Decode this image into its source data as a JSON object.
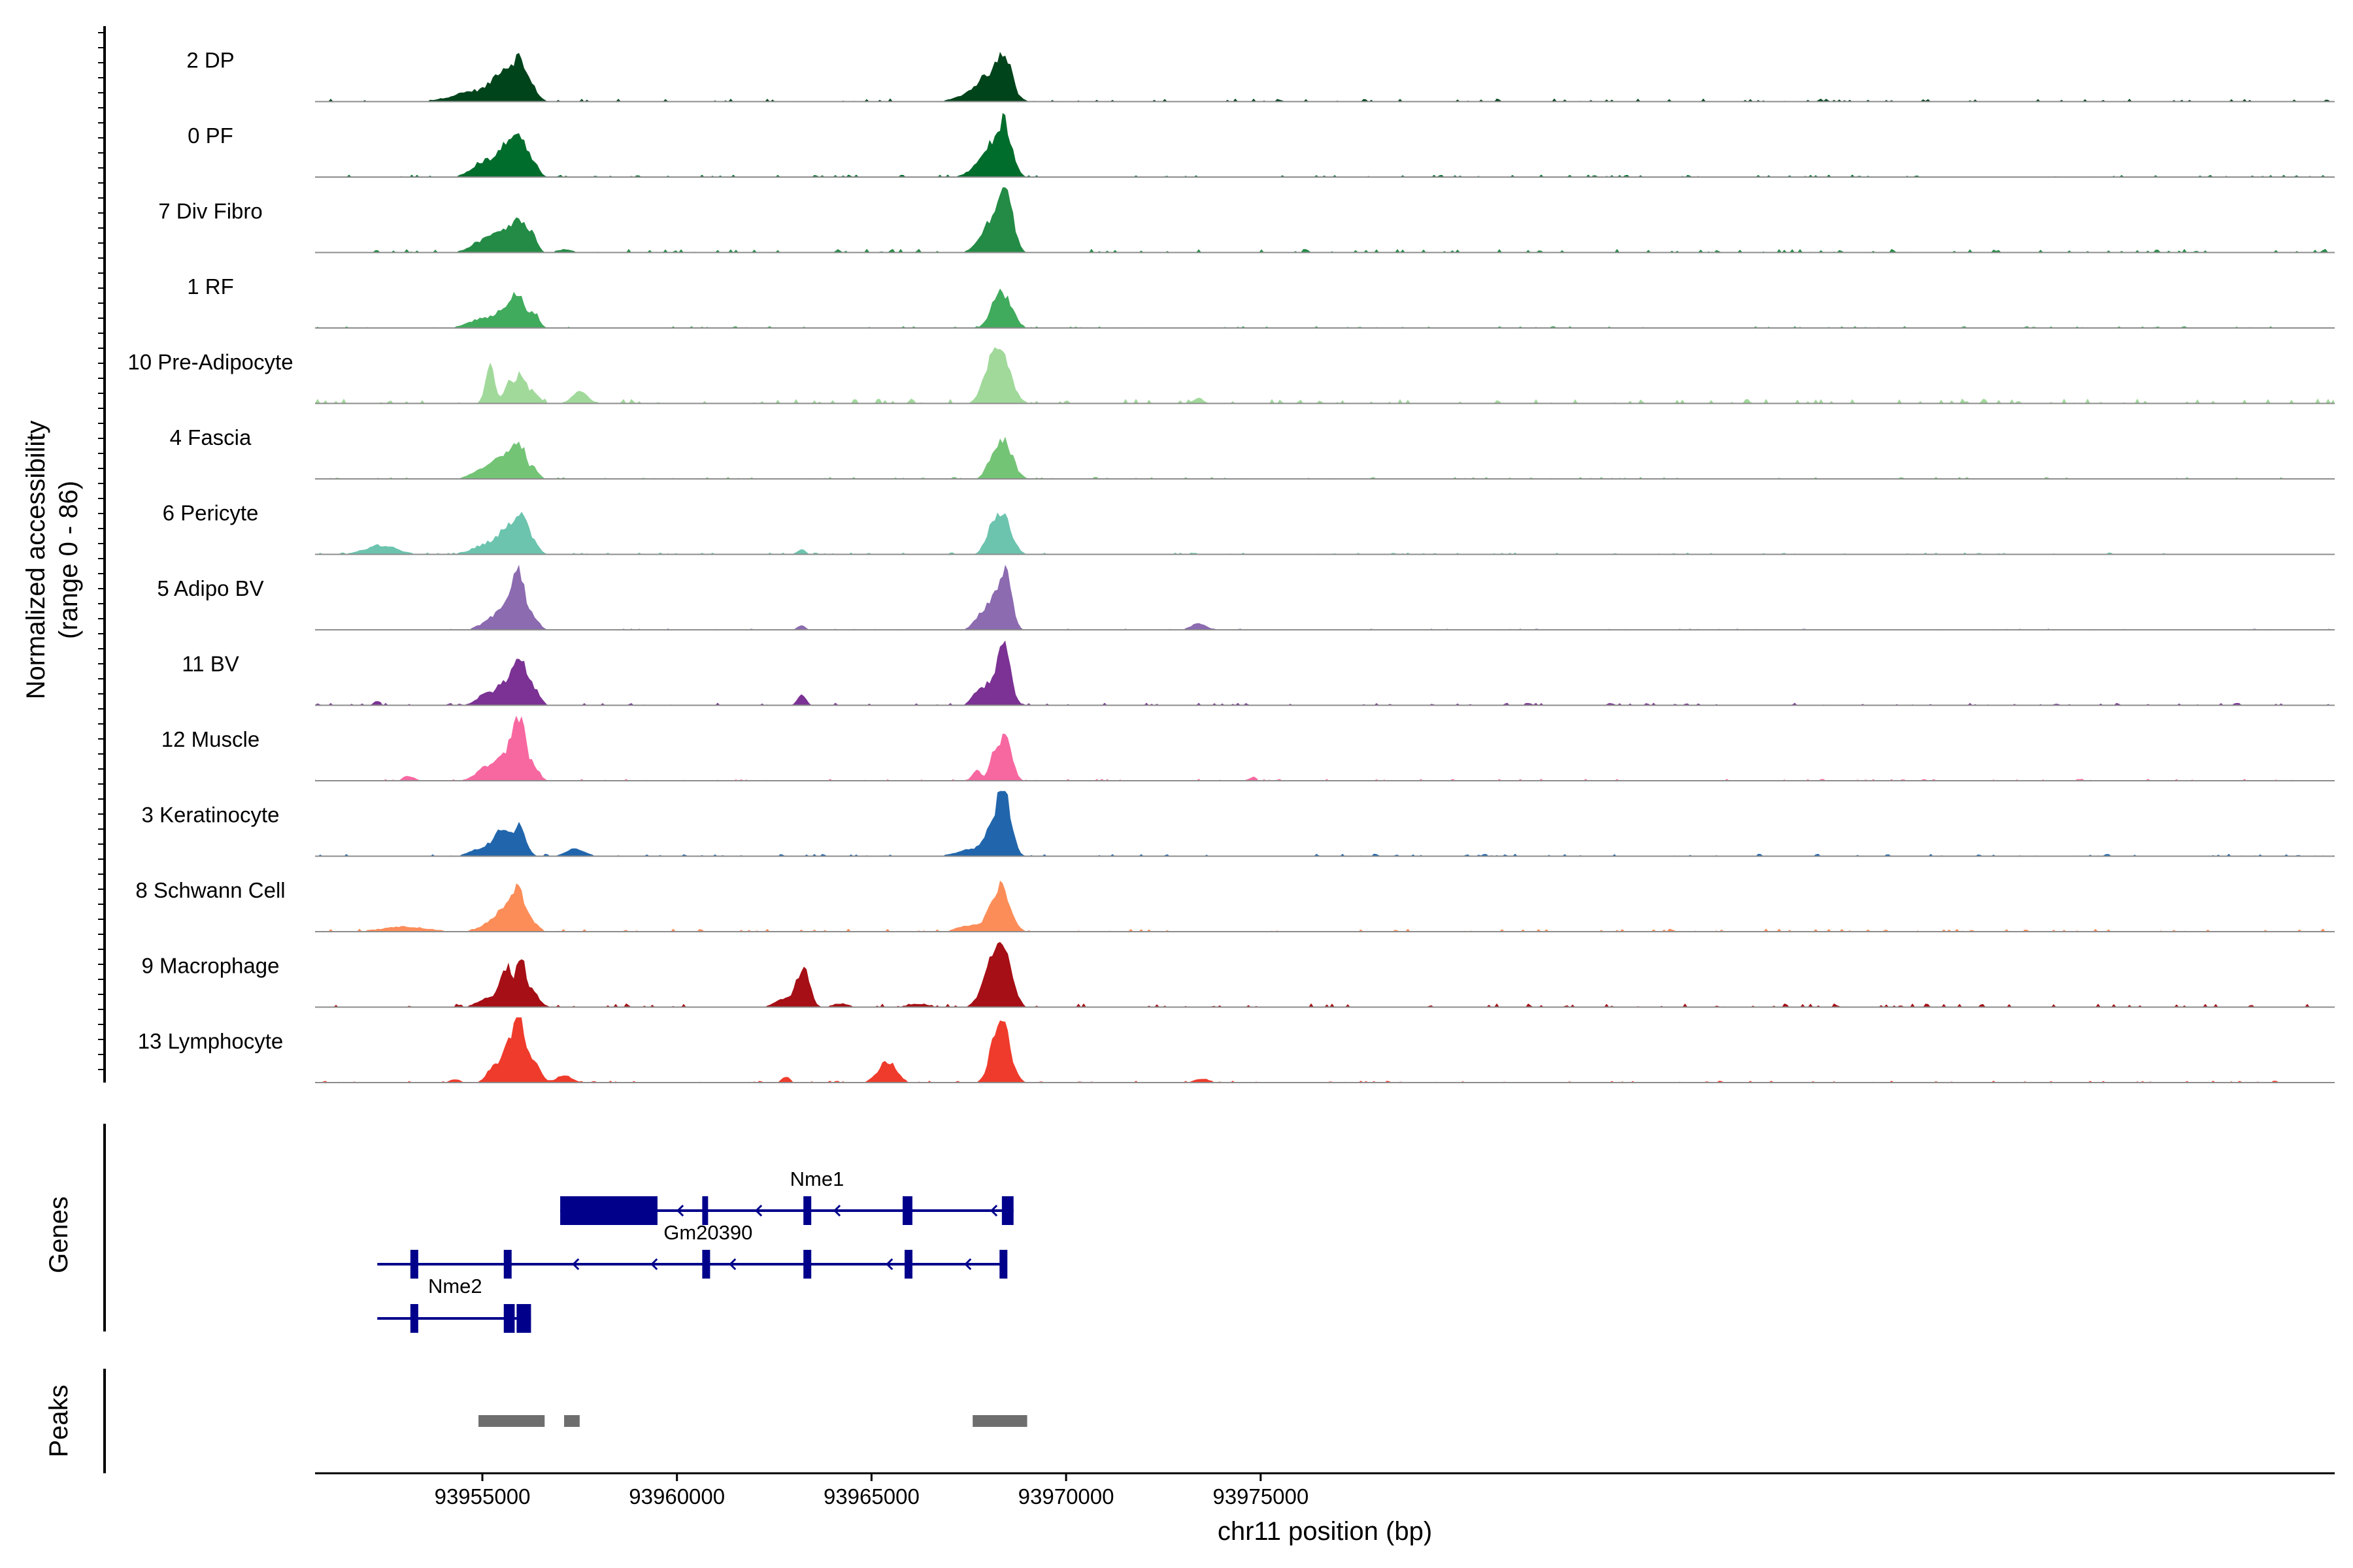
{
  "chart_data": {
    "type": "area",
    "genome_browser": true,
    "ylabel": "Normalized accessibility",
    "ylabel_range": "(range 0 - 86)",
    "y_range": [
      0,
      86
    ],
    "xlabel": "chr11 position (bp)",
    "xlim": [
      93950700,
      94002600
    ],
    "x_ticks": [
      93955000,
      93960000,
      93965000,
      93970000,
      93975000
    ],
    "tracks": [
      {
        "name": "2 DP",
        "color": "#00441b",
        "noise": 0.05,
        "peaks": [
          [
            93954900,
            600,
            0.18
          ],
          [
            93955550,
            250,
            0.42
          ],
          [
            93955960,
            170,
            0.55
          ],
          [
            93956300,
            150,
            0.18
          ],
          [
            93968100,
            350,
            0.38
          ],
          [
            93968420,
            180,
            0.55
          ],
          [
            93967600,
            400,
            0.1
          ]
        ]
      },
      {
        "name": "0 PF",
        "color": "#006d2c",
        "noise": 0.04,
        "peaks": [
          [
            93955050,
            320,
            0.25
          ],
          [
            93955600,
            220,
            0.42
          ],
          [
            93955950,
            160,
            0.58
          ],
          [
            93956300,
            140,
            0.25
          ],
          [
            93968150,
            300,
            0.45
          ],
          [
            93968440,
            170,
            0.6
          ],
          [
            93967800,
            300,
            0.1
          ]
        ]
      },
      {
        "name": "7 Div Fibro",
        "color": "#238b45",
        "noise": 0.06,
        "peaks": [
          [
            93955050,
            320,
            0.2
          ],
          [
            93955550,
            220,
            0.32
          ],
          [
            93955950,
            160,
            0.5
          ],
          [
            93956300,
            120,
            0.28
          ],
          [
            93968150,
            300,
            0.55
          ],
          [
            93968450,
            170,
            0.85
          ],
          [
            93957100,
            200,
            0.05
          ]
        ]
      },
      {
        "name": "1 RF",
        "color": "#41ab5d",
        "noise": 0.03,
        "peaks": [
          [
            93955000,
            350,
            0.15
          ],
          [
            93955600,
            220,
            0.32
          ],
          [
            93955960,
            160,
            0.48
          ],
          [
            93956350,
            120,
            0.22
          ],
          [
            93968400,
            220,
            0.55
          ],
          [
            93968100,
            150,
            0.15
          ]
        ]
      },
      {
        "name": "10 Pre-Adipocyte",
        "color": "#a1d99b",
        "noise": 0.08,
        "peaks": [
          [
            93955200,
            120,
            0.58
          ],
          [
            93955700,
            120,
            0.42
          ],
          [
            93956000,
            110,
            0.45
          ],
          [
            93956300,
            150,
            0.2
          ],
          [
            93957500,
            200,
            0.18
          ],
          [
            93968300,
            260,
            0.85
          ],
          [
            93968000,
            200,
            0.22
          ],
          [
            93973400,
            120,
            0.1
          ]
        ]
      },
      {
        "name": "4 Fascia",
        "color": "#74c476",
        "noise": 0.03,
        "peaks": [
          [
            93955100,
            320,
            0.18
          ],
          [
            93955600,
            220,
            0.32
          ],
          [
            93955960,
            160,
            0.52
          ],
          [
            93956350,
            120,
            0.15
          ],
          [
            93968400,
            220,
            0.62
          ],
          [
            93968050,
            150,
            0.15
          ]
        ]
      },
      {
        "name": "6 Pericyte",
        "color": "#6cc4ae",
        "noise": 0.03,
        "peaks": [
          [
            93952400,
            400,
            0.15
          ],
          [
            93955200,
            400,
            0.18
          ],
          [
            93955700,
            250,
            0.32
          ],
          [
            93956000,
            180,
            0.48
          ],
          [
            93956350,
            130,
            0.15
          ],
          [
            93963200,
            100,
            0.08
          ],
          [
            93968350,
            230,
            0.65
          ],
          [
            93968050,
            150,
            0.2
          ]
        ]
      },
      {
        "name": "5 Adipo BV",
        "color": "#8c6bb1",
        "noise": 0.02,
        "peaks": [
          [
            93955300,
            300,
            0.18
          ],
          [
            93955700,
            220,
            0.32
          ],
          [
            93955950,
            170,
            0.78
          ],
          [
            93956350,
            130,
            0.15
          ],
          [
            93963200,
            100,
            0.08
          ],
          [
            93968150,
            250,
            0.5
          ],
          [
            93968450,
            150,
            0.75
          ],
          [
            93967700,
            150,
            0.1
          ],
          [
            93973400,
            200,
            0.1
          ]
        ]
      },
      {
        "name": "11 BV",
        "color": "#7b3294",
        "noise": 0.04,
        "peaks": [
          [
            93955100,
            220,
            0.2
          ],
          [
            93955600,
            200,
            0.35
          ],
          [
            93955980,
            160,
            0.72
          ],
          [
            93956350,
            140,
            0.25
          ],
          [
            93963200,
            100,
            0.2
          ],
          [
            93968150,
            250,
            0.4
          ],
          [
            93968420,
            160,
            0.72
          ],
          [
            93967700,
            150,
            0.15
          ],
          [
            93952300,
            80,
            0.08
          ]
        ]
      },
      {
        "name": "12 Muscle",
        "color": "#f768a1",
        "noise": 0.03,
        "peaks": [
          [
            93955200,
            300,
            0.25
          ],
          [
            93955700,
            200,
            0.4
          ],
          [
            93955980,
            150,
            0.9
          ],
          [
            93956350,
            130,
            0.2
          ],
          [
            93953100,
            150,
            0.08
          ],
          [
            93968150,
            120,
            0.4
          ],
          [
            93968450,
            160,
            0.72
          ],
          [
            93967700,
            100,
            0.2
          ],
          [
            93974800,
            100,
            0.06
          ]
        ]
      },
      {
        "name": "3 Keratinocyte",
        "color": "#2166ac",
        "noise": 0.04,
        "peaks": [
          [
            93955100,
            350,
            0.15
          ],
          [
            93955550,
            200,
            0.4
          ],
          [
            93955980,
            150,
            0.45
          ],
          [
            93957400,
            250,
            0.12
          ],
          [
            93968200,
            250,
            0.5
          ],
          [
            93968420,
            170,
            0.75
          ],
          [
            93967500,
            350,
            0.1
          ]
        ]
      },
      {
        "name": "8 Schwann Cell",
        "color": "#fc8d59",
        "noise": 0.05,
        "peaks": [
          [
            93953000,
            600,
            0.08
          ],
          [
            93955300,
            300,
            0.18
          ],
          [
            93955700,
            200,
            0.4
          ],
          [
            93955980,
            160,
            0.48
          ],
          [
            93956350,
            130,
            0.12
          ],
          [
            93968350,
            220,
            0.72
          ],
          [
            93968050,
            180,
            0.15
          ],
          [
            93967500,
            300,
            0.1
          ]
        ]
      },
      {
        "name": "9 Macrophage",
        "color": "#a50f15",
        "noise": 0.06,
        "peaks": [
          [
            93955200,
            300,
            0.15
          ],
          [
            93955600,
            150,
            0.6
          ],
          [
            93956000,
            140,
            0.72
          ],
          [
            93956350,
            140,
            0.2
          ],
          [
            93963250,
            160,
            0.6
          ],
          [
            93962800,
            250,
            0.15
          ],
          [
            93968100,
            250,
            0.6
          ],
          [
            93968420,
            200,
            0.85
          ],
          [
            93964200,
            200,
            0.06
          ],
          [
            93966200,
            300,
            0.05
          ]
        ]
      },
      {
        "name": "13 Lymphocyte",
        "color": "#ef3b2c",
        "noise": 0.03,
        "peaks": [
          [
            93955300,
            180,
            0.25
          ],
          [
            93955700,
            160,
            0.6
          ],
          [
            93955980,
            150,
            0.88
          ],
          [
            93956350,
            150,
            0.3
          ],
          [
            93957100,
            200,
            0.12
          ],
          [
            93965400,
            230,
            0.35
          ],
          [
            93968380,
            200,
            0.88
          ],
          [
            93968100,
            150,
            0.3
          ],
          [
            93962800,
            100,
            0.1
          ],
          [
            93973500,
            200,
            0.06
          ],
          [
            93954300,
            150,
            0.05
          ]
        ]
      }
    ],
    "genes_label": "Genes",
    "genes": [
      {
        "name": "Nme1",
        "strand": "-",
        "start": 93957000,
        "end": 93968650,
        "exons": [
          [
            93957000,
            93959500,
            "wide"
          ],
          [
            93960650,
            93960800,
            "wide"
          ],
          [
            93963250,
            93963340,
            "narrow"
          ],
          [
            93965800,
            93966050,
            "wide"
          ],
          [
            93968350,
            93968650,
            "wide"
          ]
        ]
      },
      {
        "name": "Gm20390",
        "strand": "-",
        "start": 93952300,
        "end": 93968350,
        "exons": [
          [
            93953150,
            93953250,
            "narrow"
          ],
          [
            93955550,
            93955670,
            "narrow"
          ],
          [
            93960650,
            93960760,
            "narrow"
          ],
          [
            93963250,
            93963340,
            "narrow"
          ],
          [
            93965850,
            93965960,
            "narrow"
          ],
          [
            93968290,
            93968350,
            "narrow"
          ]
        ]
      },
      {
        "name": "Nme2",
        "strand": "-",
        "start": 93952300,
        "end": 93956250,
        "exons": [
          [
            93953150,
            93953250,
            "narrow"
          ],
          [
            93955550,
            93955830,
            "wide"
          ],
          [
            93955830,
            93955880,
            "line"
          ],
          [
            93955880,
            93956250,
            "wide"
          ]
        ]
      }
    ],
    "peaks_label": "Peaks",
    "peak_regions": [
      [
        93954900,
        93956600
      ],
      [
        93957100,
        93957500
      ],
      [
        93967600,
        93969000
      ]
    ]
  }
}
